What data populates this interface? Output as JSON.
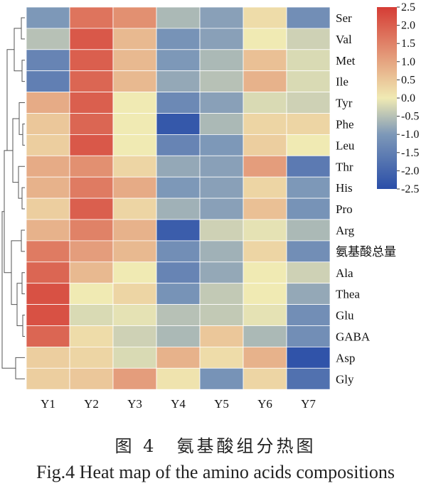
{
  "chart_data": {
    "type": "heatmap",
    "columns": [
      "Y1",
      "Y2",
      "Y3",
      "Y4",
      "Y5",
      "Y6",
      "Y7"
    ],
    "rows": [
      "Ser",
      "Val",
      "Met",
      "Ile",
      "Tyr",
      "Phe",
      "Leu",
      "Thr",
      "His",
      "Pro",
      "Arg",
      "氨基酸总量",
      "Ala",
      "Thea",
      "Glu",
      "GABA",
      "Asp",
      "Gly"
    ],
    "values": [
      [
        -1.0,
        1.7,
        1.3,
        -0.6,
        -0.9,
        0.2,
        -1.2
      ],
      [
        -0.5,
        2.1,
        0.7,
        -1.1,
        -0.9,
        0.0,
        -0.3
      ],
      [
        -1.4,
        2.0,
        0.7,
        -1.0,
        -0.6,
        0.6,
        -0.2
      ],
      [
        -1.5,
        1.9,
        0.7,
        -0.8,
        -0.5,
        0.8,
        -0.2
      ],
      [
        0.9,
        2.0,
        0.0,
        -1.3,
        -0.9,
        -0.2,
        -0.3
      ],
      [
        0.5,
        1.9,
        0.0,
        -2.3,
        -0.6,
        0.3,
        0.3
      ],
      [
        0.4,
        2.1,
        0.0,
        -1.4,
        -1.0,
        0.4,
        0.0
      ],
      [
        0.9,
        1.3,
        0.3,
        -0.8,
        -0.9,
        1.1,
        -1.6
      ],
      [
        0.8,
        1.6,
        0.9,
        -1.0,
        -0.9,
        0.3,
        -1.0
      ],
      [
        0.4,
        2.0,
        0.3,
        -0.7,
        -0.9,
        0.6,
        -1.1
      ],
      [
        0.8,
        1.5,
        0.8,
        -2.2,
        -0.3,
        -0.1,
        -0.6
      ],
      [
        1.6,
        1.1,
        0.7,
        -1.2,
        -0.7,
        0.3,
        -1.2
      ],
      [
        1.9,
        0.7,
        0.0,
        -1.4,
        -0.8,
        0.0,
        -0.3
      ],
      [
        2.2,
        0.0,
        0.3,
        -1.1,
        -0.4,
        0.0,
        -0.8
      ],
      [
        2.2,
        -0.2,
        -0.1,
        -0.5,
        -0.4,
        -0.1,
        -1.2
      ],
      [
        1.9,
        0.2,
        -0.3,
        -0.6,
        0.5,
        -0.6,
        -1.2
      ],
      [
        0.4,
        0.3,
        -0.2,
        0.8,
        0.2,
        0.8,
        -2.4
      ],
      [
        0.4,
        0.5,
        1.1,
        0.1,
        -1.1,
        0.3,
        -1.8
      ]
    ],
    "colorbar": {
      "range": [
        -2.5,
        2.5
      ],
      "ticks": [
        "2.5",
        "2.0",
        "1.5",
        "1.0",
        "0.5",
        "0.0",
        "-0.5",
        "-1.0",
        "-1.5",
        "-2.0",
        "-2.5"
      ],
      "colors": [
        "#2a4ea8",
        "#7d98b8",
        "#f0eab3",
        "#d53c35"
      ]
    },
    "row_dendrogram": true
  },
  "caption": {
    "zh": "图 4　氨基酸组分热图",
    "en": "Fig.4 Heat map of the amino acids compositions"
  }
}
